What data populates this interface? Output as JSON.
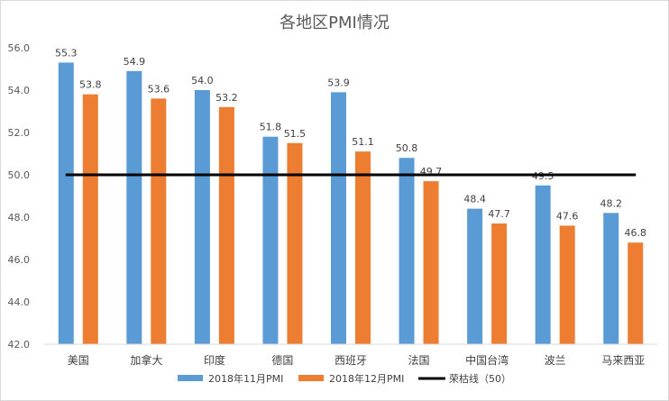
{
  "chart_data": {
    "type": "bar",
    "title": "各地区PMI情况",
    "categories": [
      "美国",
      "加拿大",
      "印度",
      "德国",
      "西班牙",
      "法国",
      "中国台湾",
      "波兰",
      "马来西亚"
    ],
    "series": [
      {
        "name": "2018年11月PMI",
        "color": "#5b9bd5",
        "values": [
          55.3,
          54.9,
          54.0,
          51.8,
          53.9,
          50.8,
          48.4,
          49.5,
          48.2
        ],
        "labels": [
          "55.3",
          "54.9",
          "54.0",
          "51.8",
          "53.9",
          "50.8",
          "48.4",
          "49.5",
          "48.2"
        ]
      },
      {
        "name": "2018年12月PMI",
        "color": "#ed7d31",
        "values": [
          53.8,
          53.6,
          53.2,
          51.5,
          51.1,
          49.7,
          47.7,
          47.6,
          46.8
        ],
        "labels": [
          "53.8",
          "53.6",
          "53.2",
          "51.5",
          "51.1",
          "49.7",
          "47.7",
          "47.6",
          "46.8"
        ]
      }
    ],
    "reference_line": {
      "name": "荣枯线（50）",
      "value": 50,
      "color": "#000000"
    },
    "ylim": [
      42,
      56
    ],
    "yticks": [
      "42.0",
      "44.0",
      "46.0",
      "48.0",
      "50.0",
      "52.0",
      "54.0",
      "56.0"
    ],
    "grid": false,
    "legend_position": "bottom",
    "xlabel": "",
    "ylabel": ""
  }
}
